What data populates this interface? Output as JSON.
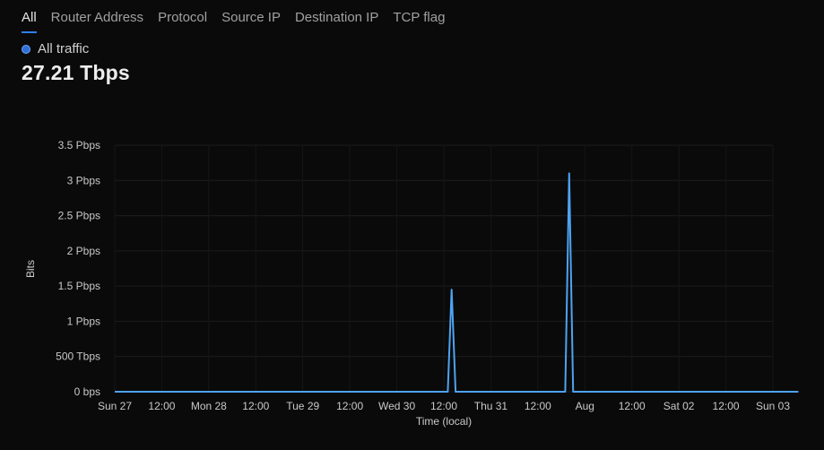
{
  "tabs": [
    {
      "label": "All",
      "active": true
    },
    {
      "label": "Router Address",
      "active": false
    },
    {
      "label": "Protocol",
      "active": false
    },
    {
      "label": "Source IP",
      "active": false
    },
    {
      "label": "Destination IP",
      "active": false
    },
    {
      "label": "TCP flag",
      "active": false
    }
  ],
  "legend": {
    "label": "All traffic",
    "color": "#2f6fd6"
  },
  "total": "27.21 Tbps",
  "chart_data": {
    "type": "line",
    "xlabel": "Time (local)",
    "ylabel": "Bits",
    "y_unit": "Pbps",
    "ylim": [
      0,
      3.5
    ],
    "grid": true,
    "x_tick_labels": [
      "Sun 27",
      "12:00",
      "Mon 28",
      "12:00",
      "Tue 29",
      "12:00",
      "Wed 30",
      "12:00",
      "Thu 31",
      "12:00",
      "Aug",
      "12:00",
      "Sat 02",
      "12:00",
      "Sun 03"
    ],
    "y_tick_labels": [
      "0 bps",
      "500 Tbps",
      "1 Pbps",
      "1.5 Pbps",
      "2 Pbps",
      "2.5 Pbps",
      "3 Pbps",
      "3.5 Pbps"
    ],
    "y_tick_values": [
      0,
      0.5,
      1,
      1.5,
      2,
      2.5,
      3,
      3.5
    ],
    "series": [
      {
        "color": "#4ea3f2",
        "x_hours": [
          0,
          170,
          172,
          174,
          230,
          232,
          234,
          349
        ],
        "values": [
          0,
          0,
          1.45,
          0,
          0,
          3.1,
          0,
          0
        ]
      }
    ]
  }
}
